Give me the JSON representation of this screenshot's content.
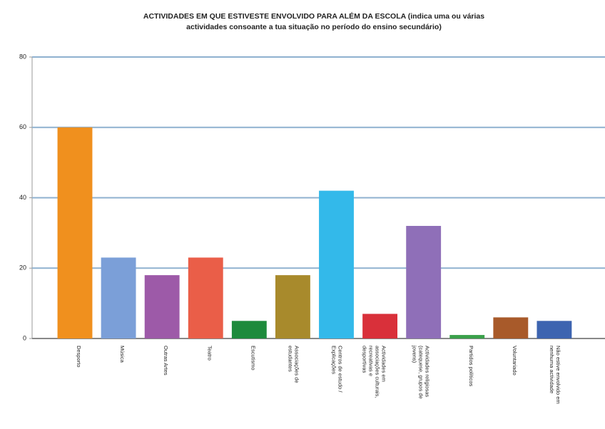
{
  "chart_data": {
    "type": "bar",
    "title": "ACTIVIDADES EM QUE ESTIVESTE ENVOLVIDO PARA ALÉM DA ESCOLA (indica uma ou várias",
    "subtitle": "actividades consoante a tua situação no período do ensino secundário)",
    "categories": [
      "Desporto",
      "Música",
      "Outras Artes",
      "Teatro",
      "Escutismo",
      "Associações de estudantes",
      "Centros de estudo / Explicações",
      "Actividades em associações culturais, recreativas e desportivas",
      "Actividades religiosas (catequese, grupos de jovens)",
      "Partidos políticos",
      "Voluntariado",
      "Não estive envolvido em nenhuma actividade"
    ],
    "values": [
      60,
      23,
      18,
      23,
      5,
      18,
      42,
      7,
      32,
      1,
      6,
      5
    ],
    "colors": [
      "#f0901e",
      "#7b9fd8",
      "#9d5aa8",
      "#ea5e48",
      "#1e8a3c",
      "#a88a2c",
      "#33b9ea",
      "#d9303a",
      "#8f6fb8",
      "#3aa04a",
      "#a85a2a",
      "#3d64b0"
    ],
    "ylim": [
      0,
      80
    ],
    "yticks": [
      0,
      20,
      40,
      60,
      80
    ],
    "grid": true
  }
}
